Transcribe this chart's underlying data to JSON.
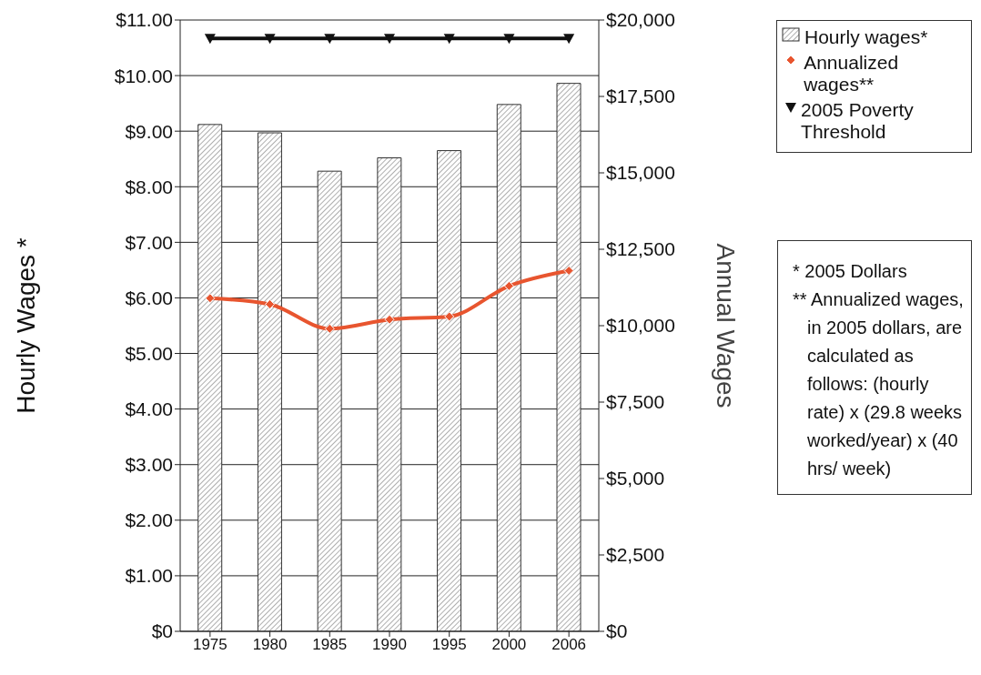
{
  "chart_data": {
    "type": "bar",
    "ylabel": "Hourly Wages *",
    "y2label": "Annual Wages",
    "categories": [
      "1975",
      "1980",
      "1985",
      "1990",
      "1995",
      "2000",
      "2006"
    ],
    "series": [
      {
        "name": "Hourly wages*",
        "color": "#333333",
        "values": [
          9.12,
          8.97,
          8.28,
          8.52,
          8.65,
          9.48,
          9.86
        ]
      },
      {
        "name": "Annualized wages**",
        "type": "line",
        "axis": "y2",
        "color": "#e8552f",
        "marker": "diamond",
        "values": [
          10900,
          10700,
          9900,
          10200,
          10300,
          11300,
          11800
        ]
      },
      {
        "name": "2005 Poverty Threshold",
        "type": "line",
        "axis": "y2",
        "color": "#111111",
        "marker": "triangle",
        "values": [
          19400,
          19400,
          19400,
          19400,
          19400,
          19400,
          19400
        ]
      }
    ],
    "ylim": [
      0,
      11
    ],
    "yticks": [
      {
        "value": 0,
        "label": "$0"
      },
      {
        "value": 1,
        "label": "$1.00"
      },
      {
        "value": 2,
        "label": "$2.00"
      },
      {
        "value": 3,
        "label": "$3.00"
      },
      {
        "value": 4,
        "label": "$4.00"
      },
      {
        "value": 5,
        "label": "$5.00"
      },
      {
        "value": 6,
        "label": "$6.00"
      },
      {
        "value": 7,
        "label": "$7.00"
      },
      {
        "value": 8,
        "label": "$8.00"
      },
      {
        "value": 9,
        "label": "$9.00"
      },
      {
        "value": 10,
        "label": "$10.00"
      },
      {
        "value": 11,
        "label": "$11.00"
      }
    ],
    "y2lim": [
      0,
      20000
    ],
    "y2ticks": [
      {
        "value": 0,
        "label": "$0"
      },
      {
        "value": 2500,
        "label": "$2,500"
      },
      {
        "value": 5000,
        "label": "$5,000"
      },
      {
        "value": 7500,
        "label": "$7,500"
      },
      {
        "value": 10000,
        "label": "$10,000"
      },
      {
        "value": 12500,
        "label": "$12,500"
      },
      {
        "value": 15000,
        "label": "$15,000"
      },
      {
        "value": 17500,
        "label": "$17,500"
      },
      {
        "value": 20000,
        "label": "$20,000"
      }
    ],
    "grid": "y",
    "legend": "top right",
    "line_style": "solid",
    "annotations": [
      "* 2005 Dollars",
      "** Annualized wages, in 2005 dollars, are calculated as follows: (hourly rate) x (29.8 weeks worked/year) x (40 hrs/ week)"
    ]
  }
}
